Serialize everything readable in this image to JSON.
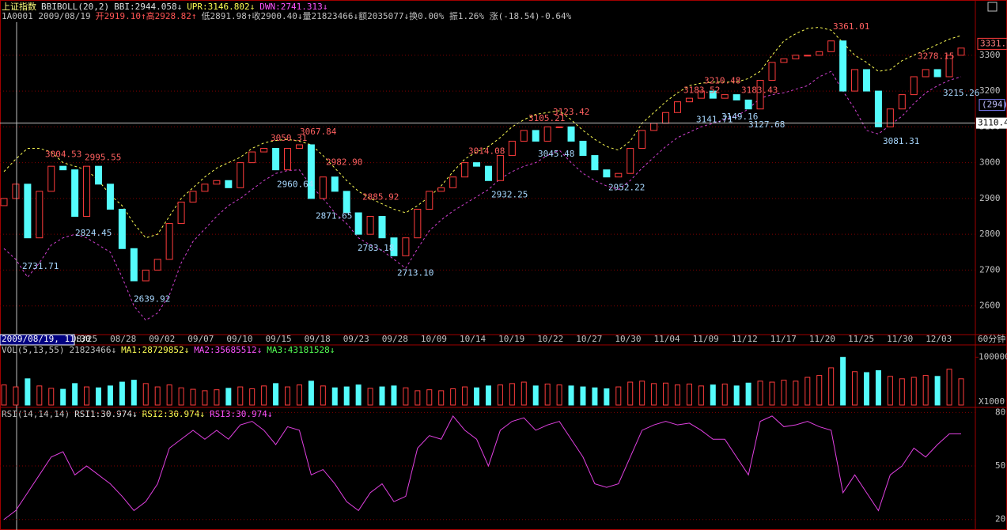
{
  "chart_data": {
    "type": "candlestick",
    "header": [
      [
        {
          "text": "上证指数",
          "color": "#ffff80"
        },
        {
          "text": "BBIBOLL(20,2)",
          "color": "#e0e0e0"
        },
        {
          "text": "BBI:2944.058↓",
          "color": "#e0e0e0"
        },
        {
          "text": "UPR:3146.802↓",
          "color": "#ffff54"
        },
        {
          "text": "DWN:2741.313↓",
          "color": "#ff54ff"
        }
      ],
      [
        {
          "text": "1A0001 2009/08/19",
          "color": "#c0c0c0"
        },
        {
          "text": "开2919.10↑高2928.82↑",
          "color": "#ff5454"
        },
        {
          "text": "低2891.98↑收2900.40↓量21823466↓额2035077↓换0.00% 振1.26% 涨(-18.54)-0.64%",
          "color": "#c0c0c0"
        }
      ]
    ],
    "x_labels": [
      "08/25",
      "08/28",
      "09/02",
      "09/07",
      "09/10",
      "09/15",
      "09/18",
      "09/23",
      "09/28",
      "10/09",
      "10/14",
      "10/19",
      "10/22",
      "10/27",
      "10/30",
      "11/04",
      "11/09",
      "11/12",
      "11/17",
      "11/20",
      "11/25",
      "11/30",
      "12/03"
    ],
    "cursor_label": "2009/08/19, 11:30",
    "period": "60分钟",
    "open": [
      2880,
      2900,
      2940,
      2790,
      2920,
      2990,
      2980,
      2850,
      2990,
      2940,
      2870,
      2760,
      2670,
      2700,
      2730,
      2830,
      2890,
      2920,
      2940,
      2950,
      2930,
      3000,
      3030,
      3040,
      2980,
      3040,
      3050,
      2900,
      2960,
      2920,
      2860,
      2800,
      2850,
      2790,
      2740,
      2790,
      2870,
      2920,
      2930,
      2960,
      3000,
      2990,
      2950,
      3020,
      3060,
      3090,
      3060,
      3100,
      3100,
      3060,
      3020,
      2980,
      2960,
      2970,
      3040,
      3090,
      3110,
      3140,
      3170,
      3180,
      3200,
      3180,
      3190,
      3175,
      3150,
      3230,
      3280,
      3290,
      3300,
      3300,
      3310,
      3340,
      3200,
      3260,
      3200,
      3100,
      3150,
      3190,
      3240,
      3260,
      3240,
      3300
    ],
    "close": [
      2900,
      2940,
      2790,
      2920,
      2990,
      2980,
      2850,
      2990,
      2940,
      2870,
      2760,
      2670,
      2700,
      2730,
      2830,
      2890,
      2920,
      2940,
      2950,
      2930,
      3000,
      3030,
      3040,
      2980,
      3040,
      3050,
      2900,
      2960,
      2920,
      2860,
      2800,
      2850,
      2790,
      2740,
      2790,
      2870,
      2920,
      2930,
      2960,
      3000,
      2990,
      2950,
      3020,
      3060,
      3090,
      3060,
      3100,
      3100,
      3060,
      3020,
      2980,
      2960,
      2970,
      3040,
      3090,
      3110,
      3140,
      3170,
      3180,
      3200,
      3180,
      3190,
      3175,
      3150,
      3230,
      3280,
      3290,
      3300,
      3300,
      3310,
      3340,
      3200,
      3260,
      3200,
      3100,
      3150,
      3190,
      3240,
      3260,
      3240,
      3300,
      3320
    ],
    "upper": [
      2975,
      3010,
      3040,
      3040,
      3030,
      3000,
      2990,
      2980,
      2950,
      2910,
      2880,
      2830,
      2790,
      2800,
      2850,
      2900,
      2930,
      2960,
      2985,
      3000,
      3015,
      3040,
      3055,
      3062,
      3065,
      3060,
      3050,
      3020,
      2985,
      2950,
      2920,
      2900,
      2885,
      2870,
      2860,
      2880,
      2905,
      2935,
      2975,
      3010,
      3030,
      3045,
      3070,
      3100,
      3120,
      3135,
      3140,
      3145,
      3120,
      3090,
      3065,
      3045,
      3035,
      3060,
      3110,
      3140,
      3170,
      3195,
      3215,
      3222,
      3225,
      3225,
      3225,
      3235,
      3255,
      3300,
      3340,
      3360,
      3375,
      3378,
      3370,
      3335,
      3300,
      3280,
      3255,
      3260,
      3285,
      3300,
      3315,
      3330,
      3345,
      3355
    ],
    "lower": [
      2760,
      2730,
      2680,
      2720,
      2770,
      2790,
      2800,
      2790,
      2770,
      2750,
      2680,
      2600,
      2560,
      2580,
      2630,
      2720,
      2780,
      2815,
      2850,
      2880,
      2900,
      2925,
      2950,
      2970,
      2978,
      2980,
      2935,
      2900,
      2860,
      2830,
      2790,
      2770,
      2755,
      2730,
      2705,
      2760,
      2810,
      2840,
      2865,
      2885,
      2905,
      2925,
      2955,
      2975,
      2990,
      3000,
      3020,
      3035,
      3000,
      2970,
      2950,
      2935,
      2925,
      2950,
      2985,
      3015,
      3045,
      3070,
      3085,
      3100,
      3110,
      3120,
      3130,
      3150,
      3180,
      3190,
      3195,
      3205,
      3215,
      3240,
      3255,
      3200,
      3150,
      3090,
      3080,
      3105,
      3130,
      3165,
      3195,
      3215,
      3230,
      3240
    ],
    "colors": {
      "up": "#ff3c3c",
      "down": "#54fcfc",
      "upper": "#ffff54",
      "lower": "#d040d0",
      "grid": "#800000"
    },
    "ylim": [
      2522,
      3388
    ],
    "yticks": [
      3300,
      3200,
      3100,
      3000,
      2900,
      2800,
      2700,
      2600
    ],
    "grid": true,
    "annotations": [
      {
        "value": 3004.53,
        "label": "3004.53"
      },
      {
        "value": 2995.55,
        "label": "2995.55"
      },
      {
        "value": 2731.71,
        "label": "2731.71"
      },
      {
        "value": 2824.45,
        "label": "2824.45"
      },
      {
        "value": 2639.92,
        "label": "2639.92"
      },
      {
        "value": 3050.31,
        "label": "3050.31"
      },
      {
        "value": 3067.84,
        "label": "3067.84"
      },
      {
        "value": 2960.64,
        "label": "2960.64"
      },
      {
        "value": 2982.9,
        "label": "2982.90"
      },
      {
        "value": 2871.65,
        "label": "2871.65"
      },
      {
        "value": 2885.92,
        "label": "2885.92"
      },
      {
        "value": 2783.18,
        "label": "2783.18"
      },
      {
        "value": 2713.1,
        "label": "2713.10"
      },
      {
        "value": 3014.08,
        "label": "3014.08"
      },
      {
        "value": 2932.25,
        "label": "2932.25"
      },
      {
        "value": 3105.21,
        "label": "3105.21"
      },
      {
        "value": 3123.42,
        "label": "3123.42"
      },
      {
        "value": 3045.48,
        "label": "3045.48"
      },
      {
        "value": 2952.22,
        "label": "2952.22"
      },
      {
        "value": 3183.52,
        "label": "3183.52"
      },
      {
        "value": 3210.48,
        "label": "3210.48"
      },
      {
        "value": 3183.43,
        "label": "3183.43"
      },
      {
        "value": 3141.71,
        "label": "3141.71"
      },
      {
        "value": 3149.16,
        "label": "3149.16"
      },
      {
        "value": 3127.68,
        "label": "3127.68"
      },
      {
        "value": 3361.01,
        "label": "3361.01"
      },
      {
        "value": 3278.15,
        "label": "3278.15"
      },
      {
        "value": 3215.26,
        "label": "3215.26"
      },
      {
        "value": 3081.31,
        "label": "3081.31"
      }
    ],
    "last_price": 3331.9,
    "cursor_price": 3110.45,
    "cursor_count": "(294)",
    "volume": {
      "header": [
        {
          "text": "VOL(5,13,55)",
          "color": "#c0c0c0"
        },
        {
          "text": "21823466↓",
          "color": "#c0c0c0"
        },
        {
          "text": "MA1:28729852↓",
          "color": "#ffff54"
        },
        {
          "text": "MA2:35685512↓",
          "color": "#ff54ff"
        },
        {
          "text": "MA3:43181528↓",
          "color": "#54ff54"
        }
      ],
      "values": [
        42000,
        38000,
        55000,
        40000,
        35000,
        33000,
        45000,
        38000,
        36000,
        40000,
        48000,
        52000,
        45000,
        38000,
        42000,
        36000,
        33000,
        30000,
        32000,
        35000,
        38000,
        34000,
        40000,
        45000,
        38000,
        42000,
        50000,
        40000,
        36000,
        38000,
        42000,
        35000,
        38000,
        40000,
        36000,
        30000,
        32000,
        30000,
        34000,
        38000,
        36000,
        40000,
        42000,
        45000,
        48000,
        40000,
        44000,
        42000,
        40000,
        38000,
        36000,
        34000,
        38000,
        48000,
        50000,
        45000,
        46000,
        42000,
        44000,
        40000,
        42000,
        44000,
        40000,
        46000,
        50000,
        48000,
        52000,
        50000,
        58000,
        62000,
        78000,
        100000,
        70000,
        68000,
        72000,
        60000,
        55000,
        58000,
        62000,
        60000,
        75000,
        55000
      ],
      "ylim": [
        0,
        126000
      ],
      "yticks": [
        100000
      ],
      "unit": "X1000"
    },
    "rsi": {
      "header": [
        {
          "text": "RSI(14,14,14)",
          "color": "#c0c0c0"
        },
        {
          "text": "RSI1:30.974↓",
          "color": "#e0e0e0"
        },
        {
          "text": "RSI2:30.974↓",
          "color": "#ffff54"
        },
        {
          "text": "RSI3:30.974↓",
          "color": "#ff54ff"
        }
      ],
      "values": [
        20,
        25,
        35,
        45,
        55,
        58,
        45,
        50,
        45,
        40,
        33,
        25,
        30,
        40,
        60,
        65,
        70,
        65,
        70,
        65,
        73,
        75,
        70,
        62,
        72,
        70,
        45,
        48,
        40,
        30,
        25,
        35,
        40,
        30,
        33,
        60,
        67,
        65,
        78,
        70,
        65,
        50,
        70,
        75,
        77,
        70,
        73,
        75,
        65,
        55,
        40,
        38,
        40,
        55,
        70,
        73,
        75,
        73,
        74,
        70,
        65,
        65,
        55,
        45,
        75,
        78,
        72,
        73,
        75,
        72,
        70,
        35,
        45,
        35,
        25,
        45,
        50,
        60,
        55,
        62,
        68,
        68
      ],
      "color": "#e040e0",
      "ylim": [
        15,
        81.5
      ],
      "yticks": [
        80,
        50,
        20
      ]
    }
  }
}
